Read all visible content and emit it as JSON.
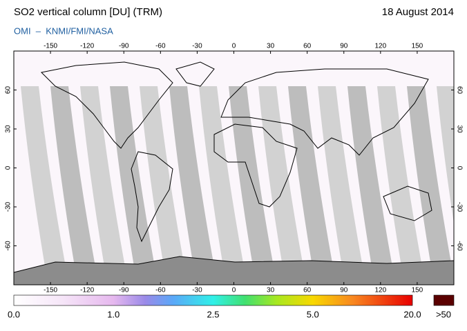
{
  "header": {
    "title": "SO2 vertical column [DU] (TRM)",
    "date": "18 August 2014",
    "subtitle": "OMI  –  KNMI/FMI/NASA"
  },
  "map": {
    "lon_range": [
      -180,
      180
    ],
    "lat_range": [
      90,
      -90
    ],
    "longitude_ticks": [
      -150,
      -120,
      -90,
      -60,
      -30,
      0,
      30,
      60,
      90,
      120,
      150
    ],
    "latitude_ticks": [
      60,
      30,
      0,
      -30,
      -60
    ],
    "colorbar": {
      "labels": [
        "0.0",
        "1.0",
        "2.5",
        "5.0",
        "20.0"
      ],
      "overflow_label": ">50"
    }
  }
}
